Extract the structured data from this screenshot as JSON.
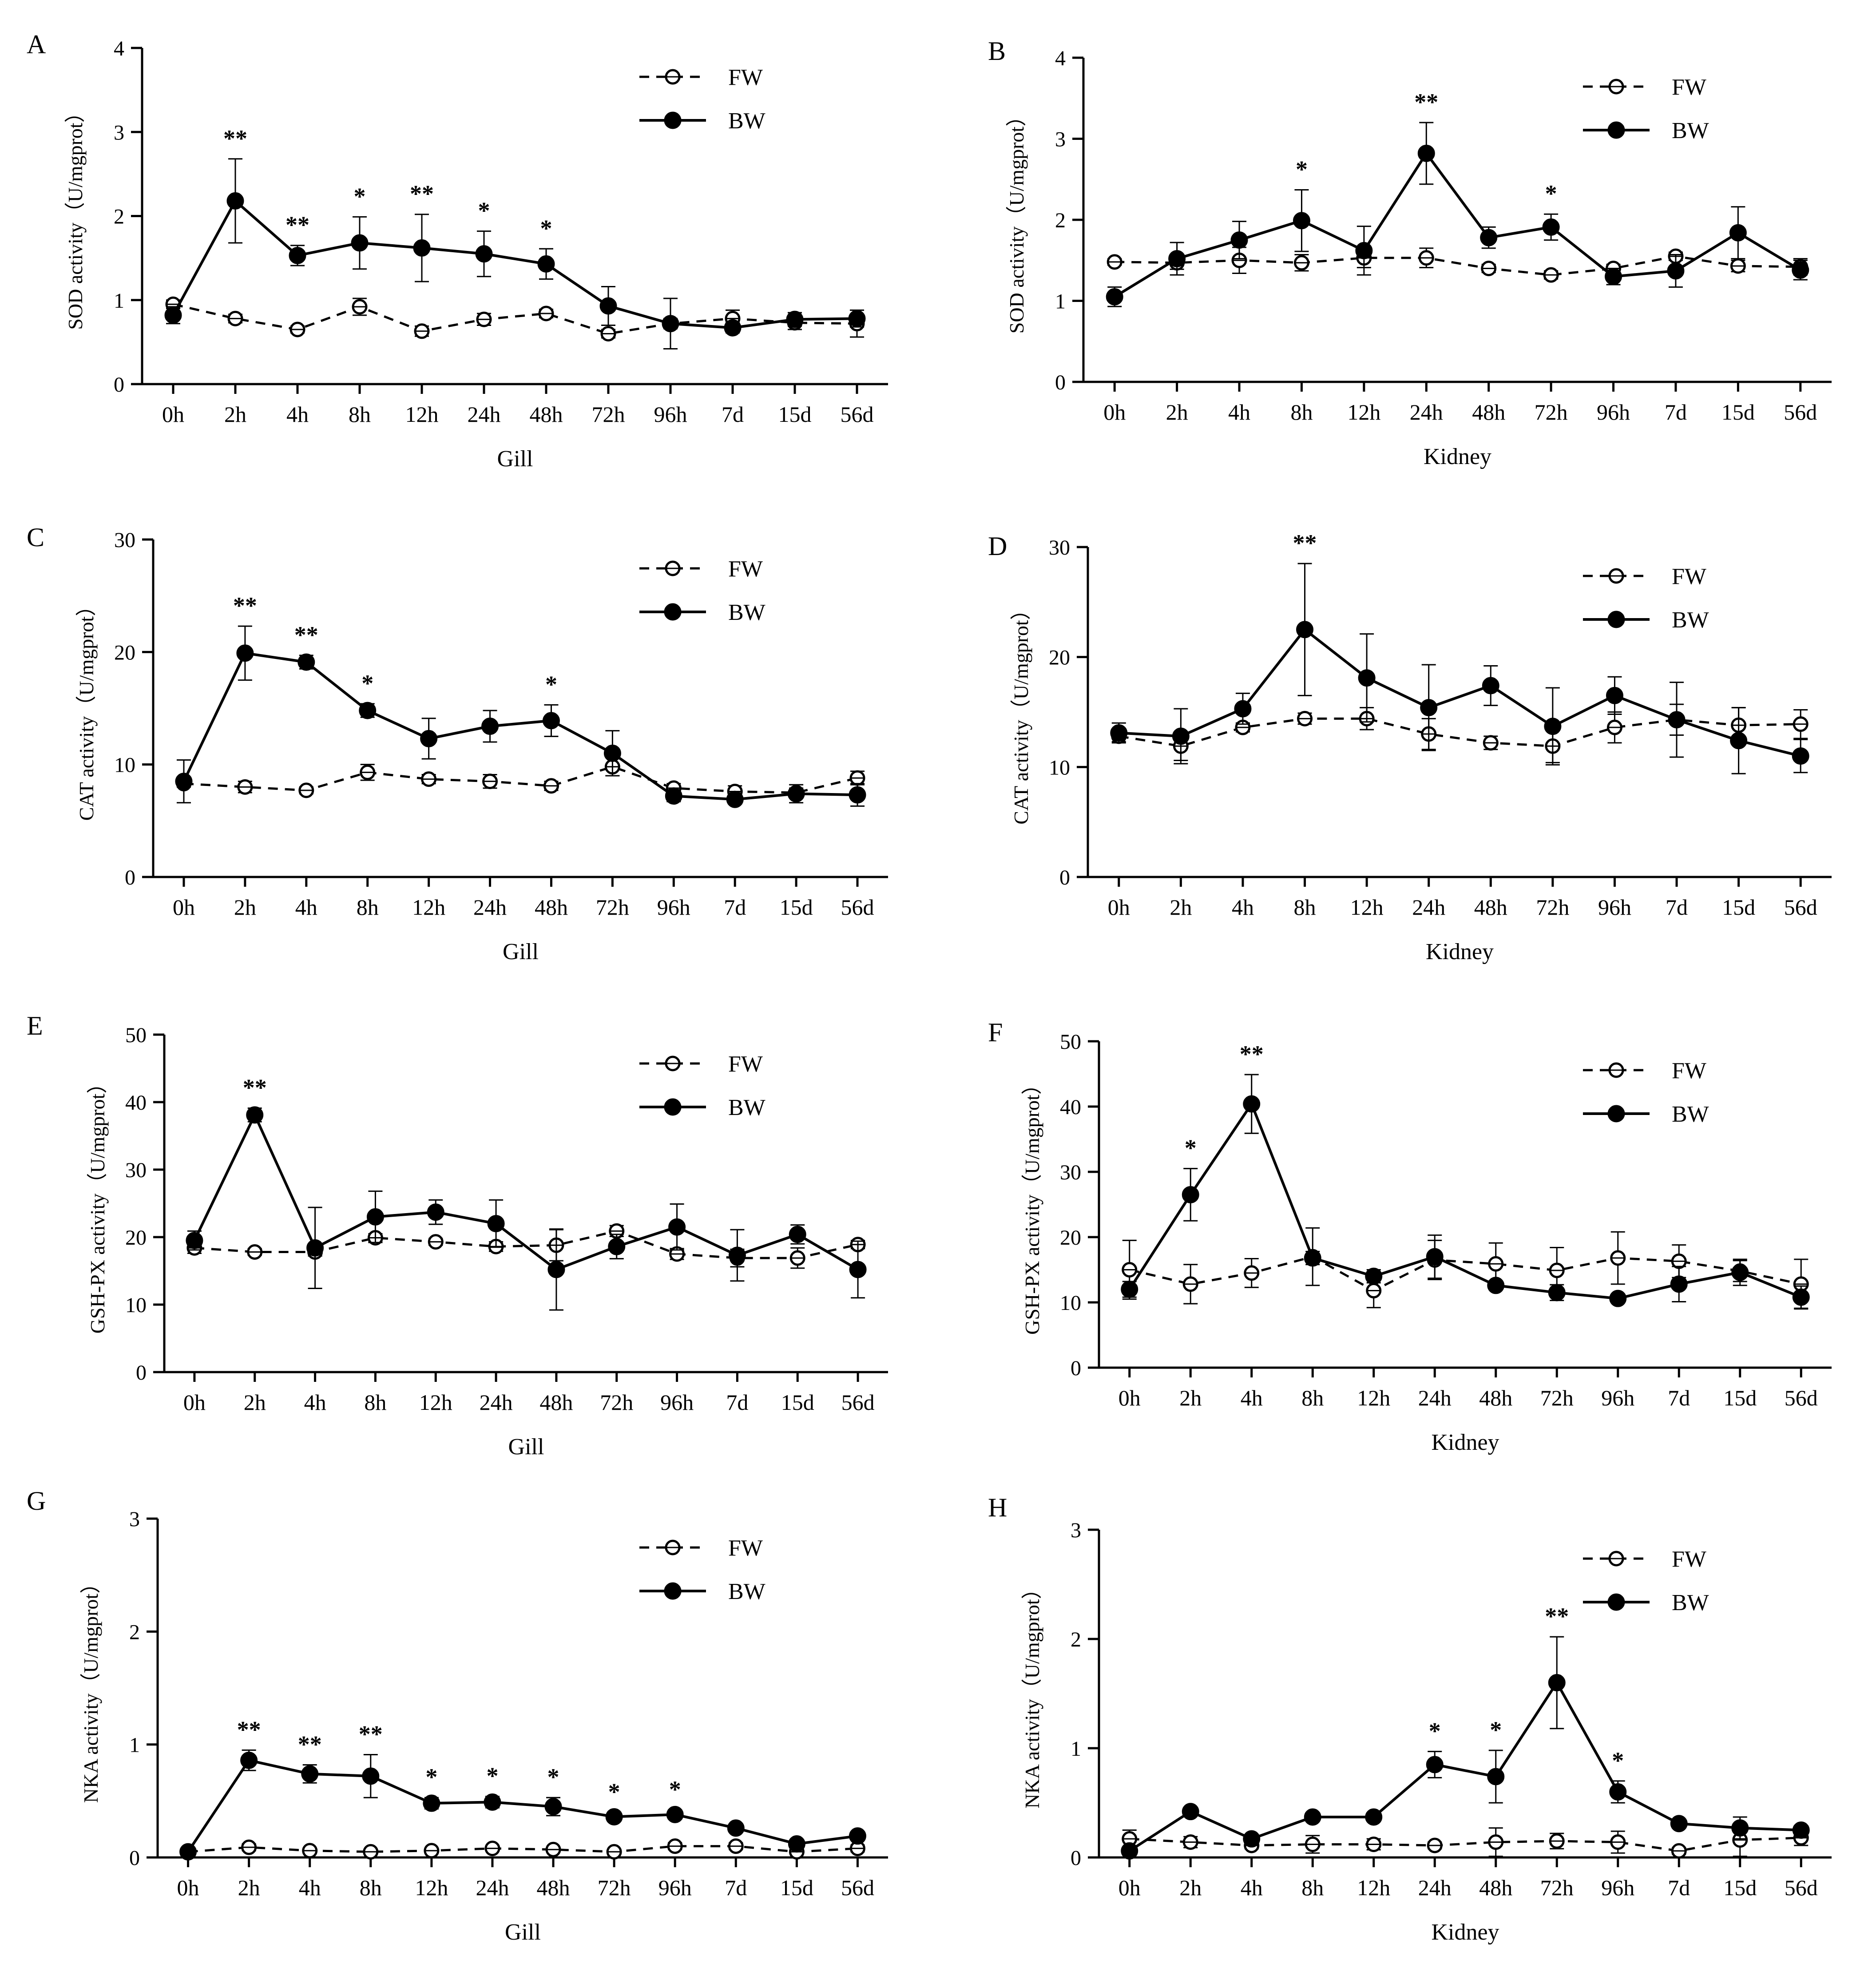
{
  "figure": {
    "categories": [
      "0h",
      "2h",
      "4h",
      "8h",
      "12h",
      "24h",
      "48h",
      "72h",
      "96h",
      "7d",
      "15d",
      "56d"
    ]
  },
  "chart_data": [
    {
      "type": "line",
      "panel_label": "A",
      "title": "",
      "xlabel": "Gill",
      "ylabel": "SOD activity（U/mgprot）",
      "ylim": [
        0,
        4
      ],
      "yticks": [
        0,
        1,
        2,
        3,
        4
      ],
      "legend_position": "top-right",
      "series": [
        {
          "name": "FW",
          "values": [
            0.95,
            0.78,
            0.65,
            0.92,
            0.63,
            0.77,
            0.84,
            0.6,
            0.72,
            0.78,
            0.73,
            0.72
          ],
          "errors": [
            0.05,
            0.05,
            0.04,
            0.1,
            0.06,
            0.07,
            0.05,
            0.05,
            0.06,
            0.1,
            0.08,
            0.16
          ]
        },
        {
          "name": "BW",
          "values": [
            0.82,
            2.18,
            1.53,
            1.68,
            1.62,
            1.55,
            1.43,
            0.93,
            0.72,
            0.67,
            0.77,
            0.78
          ],
          "errors": [
            0.1,
            0.5,
            0.12,
            0.31,
            0.4,
            0.27,
            0.18,
            0.23,
            0.3,
            0.06,
            0.08,
            0.1
          ]
        }
      ],
      "annotations": [
        {
          "category": "2h",
          "text": "**"
        },
        {
          "category": "4h",
          "text": "**"
        },
        {
          "category": "8h",
          "text": "*"
        },
        {
          "category": "12h",
          "text": "**"
        },
        {
          "category": "24h",
          "text": "*"
        },
        {
          "category": "48h",
          "text": "*"
        }
      ]
    },
    {
      "type": "line",
      "panel_label": "B",
      "title": "",
      "xlabel": "Kidney",
      "ylabel": "SOD activity（U/mgprot）",
      "ylim": [
        0,
        4
      ],
      "yticks": [
        0,
        1,
        2,
        3,
        4
      ],
      "legend_position": "top-right",
      "series": [
        {
          "name": "FW",
          "values": [
            1.48,
            1.47,
            1.5,
            1.47,
            1.53,
            1.53,
            1.4,
            1.32,
            1.4,
            1.55,
            1.43,
            1.42
          ],
          "errors": [
            0.04,
            0.08,
            0.16,
            0.1,
            0.12,
            0.12,
            0.05,
            0.05,
            0.05,
            0.05,
            0.07,
            0.1
          ]
        },
        {
          "name": "BW",
          "values": [
            1.05,
            1.52,
            1.75,
            1.99,
            1.62,
            2.82,
            1.78,
            1.91,
            1.3,
            1.37,
            1.84,
            1.38
          ],
          "errors": [
            0.12,
            0.2,
            0.23,
            0.38,
            0.3,
            0.38,
            0.13,
            0.16,
            0.1,
            0.2,
            0.32,
            0.12
          ]
        }
      ],
      "annotations": [
        {
          "category": "8h",
          "text": "*"
        },
        {
          "category": "24h",
          "text": "**"
        },
        {
          "category": "72h",
          "text": "*"
        }
      ]
    },
    {
      "type": "line",
      "panel_label": "C",
      "title": "",
      "xlabel": "Gill",
      "ylabel": "CAT activity（U/mgprot）",
      "ylim": [
        0,
        30
      ],
      "yticks": [
        0,
        10,
        20,
        30
      ],
      "legend_position": "top-right",
      "series": [
        {
          "name": "FW",
          "values": [
            8.3,
            8.0,
            7.7,
            9.3,
            8.7,
            8.5,
            8.1,
            9.8,
            7.9,
            7.6,
            7.5,
            8.8
          ],
          "errors": [
            0.3,
            0.5,
            0.3,
            0.7,
            0.4,
            0.6,
            0.4,
            0.8,
            0.4,
            0.5,
            0.4,
            0.6
          ]
        },
        {
          "name": "BW",
          "values": [
            8.5,
            19.9,
            19.1,
            14.8,
            12.3,
            13.4,
            13.9,
            11.0,
            7.2,
            6.9,
            7.4,
            7.3
          ],
          "errors": [
            1.9,
            2.4,
            0.6,
            0.6,
            1.8,
            1.4,
            1.4,
            2.0,
            0.5,
            0.4,
            0.8,
            1.0
          ]
        }
      ],
      "annotations": [
        {
          "category": "2h",
          "text": "**"
        },
        {
          "category": "4h",
          "text": "**"
        },
        {
          "category": "8h",
          "text": "*"
        },
        {
          "category": "48h",
          "text": "*"
        }
      ]
    },
    {
      "type": "line",
      "panel_label": "D",
      "title": "",
      "xlabel": "Kidney",
      "ylabel": "CAT activity（U/mgprot）",
      "ylim": [
        0,
        30
      ],
      "yticks": [
        0,
        10,
        20,
        30
      ],
      "legend_position": "top-right",
      "series": [
        {
          "name": "FW",
          "values": [
            12.8,
            11.9,
            13.6,
            14.4,
            14.4,
            13.0,
            12.2,
            11.9,
            13.6,
            14.3,
            13.8,
            13.9
          ],
          "errors": [
            0.5,
            1.3,
            0.4,
            0.5,
            1.0,
            1.4,
            0.6,
            1.5,
            1.4,
            1.4,
            1.6,
            1.3
          ]
        },
        {
          "name": "BW",
          "values": [
            13.1,
            12.8,
            15.3,
            22.5,
            18.1,
            15.4,
            17.4,
            13.7,
            16.5,
            14.3,
            12.4,
            11.0
          ],
          "errors": [
            0.9,
            2.5,
            1.4,
            6.0,
            4.0,
            3.9,
            1.8,
            3.5,
            1.7,
            3.4,
            3.0,
            1.5
          ]
        }
      ],
      "annotations": [
        {
          "category": "8h",
          "text": "**"
        }
      ]
    },
    {
      "type": "line",
      "panel_label": "E",
      "title": "",
      "xlabel": "Gill",
      "ylabel": "GSH-PX activity（U/mgprot）",
      "ylim": [
        0,
        50
      ],
      "yticks": [
        0,
        10,
        20,
        30,
        40,
        50
      ],
      "legend_position": "top-right",
      "series": [
        {
          "name": "FW",
          "values": [
            18.4,
            17.8,
            17.8,
            19.9,
            19.3,
            18.6,
            18.8,
            20.9,
            17.5,
            16.9,
            16.9,
            18.9
          ],
          "errors": [
            0.8,
            0.5,
            0.6,
            0.6,
            0.5,
            0.7,
            2.3,
            0.8,
            0.8,
            1.3,
            1.5,
            0.6
          ]
        },
        {
          "name": "BW",
          "values": [
            19.5,
            38.1,
            18.4,
            23.0,
            23.7,
            22.0,
            15.2,
            18.6,
            21.5,
            17.3,
            20.4,
            15.2
          ],
          "errors": [
            1.4,
            1.0,
            6.0,
            3.8,
            1.8,
            3.5,
            6.0,
            1.8,
            3.4,
            3.8,
            1.4,
            4.2
          ]
        }
      ],
      "annotations": [
        {
          "category": "2h",
          "text": "**"
        }
      ]
    },
    {
      "type": "line",
      "panel_label": "F",
      "title": "",
      "xlabel": "Kidney",
      "ylabel": "GSH-PX activity（U/mgprot）",
      "ylim": [
        0,
        50
      ],
      "yticks": [
        0,
        10,
        20,
        30,
        40,
        50
      ],
      "legend_position": "top-right",
      "series": [
        {
          "name": "FW",
          "values": [
            15.0,
            12.8,
            14.5,
            17.0,
            11.8,
            16.5,
            15.9,
            14.9,
            16.8,
            16.3,
            14.8,
            12.8
          ],
          "errors": [
            4.5,
            3.0,
            2.2,
            4.4,
            2.6,
            3.0,
            3.2,
            3.5,
            4.0,
            2.5,
            1.6,
            3.8
          ]
        },
        {
          "name": "BW",
          "values": [
            12.0,
            26.5,
            40.4,
            16.8,
            14.0,
            17.0,
            12.6,
            11.5,
            10.6,
            12.8,
            14.6,
            10.8
          ],
          "errors": [
            1.2,
            4.0,
            4.5,
            1.0,
            1.0,
            3.3,
            0.5,
            1.2,
            0.5,
            2.7,
            2.0,
            1.7
          ]
        }
      ],
      "annotations": [
        {
          "category": "2h",
          "text": "*"
        },
        {
          "category": "4h",
          "text": "**"
        }
      ]
    },
    {
      "type": "line",
      "panel_label": "G",
      "title": "",
      "xlabel": "Gill",
      "ylabel": "NKA activity（U/mgprot）",
      "ylim": [
        0,
        3
      ],
      "yticks": [
        0,
        1,
        2,
        3
      ],
      "legend_position": "top-right",
      "series": [
        {
          "name": "FW",
          "values": [
            0.05,
            0.09,
            0.06,
            0.05,
            0.06,
            0.08,
            0.07,
            0.05,
            0.1,
            0.1,
            0.05,
            0.08
          ],
          "errors": [
            0.02,
            0.03,
            0.02,
            0.02,
            0.02,
            0.02,
            0.02,
            0.02,
            0.03,
            0.03,
            0.02,
            0.03
          ]
        },
        {
          "name": "BW",
          "values": [
            0.05,
            0.86,
            0.74,
            0.72,
            0.48,
            0.49,
            0.45,
            0.36,
            0.38,
            0.26,
            0.12,
            0.19
          ],
          "errors": [
            0.02,
            0.09,
            0.08,
            0.19,
            0.05,
            0.05,
            0.08,
            0.04,
            0.04,
            0.02,
            0.03,
            0.03
          ]
        }
      ],
      "annotations": [
        {
          "category": "2h",
          "text": "**"
        },
        {
          "category": "4h",
          "text": "**"
        },
        {
          "category": "8h",
          "text": "**"
        },
        {
          "category": "12h",
          "text": "*"
        },
        {
          "category": "24h",
          "text": "*"
        },
        {
          "category": "48h",
          "text": "*"
        },
        {
          "category": "72h",
          "text": "*"
        },
        {
          "category": "96h",
          "text": "*"
        }
      ]
    },
    {
      "type": "line",
      "panel_label": "H",
      "title": "",
      "xlabel": "Kidney",
      "ylabel": "NKA activity（U/mgprot）",
      "ylim": [
        0,
        3
      ],
      "yticks": [
        0,
        1,
        2,
        3
      ],
      "legend_position": "top-right",
      "series": [
        {
          "name": "FW",
          "values": [
            0.17,
            0.14,
            0.11,
            0.12,
            0.12,
            0.11,
            0.14,
            0.15,
            0.14,
            0.06,
            0.16,
            0.18
          ],
          "errors": [
            0.08,
            0.05,
            0.03,
            0.08,
            0.05,
            0.03,
            0.13,
            0.07,
            0.1,
            0.03,
            0.15,
            0.07
          ]
        },
        {
          "name": "BW",
          "values": [
            0.06,
            0.42,
            0.17,
            0.37,
            0.37,
            0.85,
            0.74,
            1.6,
            0.6,
            0.31,
            0.27,
            0.25
          ],
          "errors": [
            0.03,
            0.03,
            0.02,
            0.04,
            0.03,
            0.12,
            0.24,
            0.42,
            0.1,
            0.03,
            0.1,
            0.04
          ]
        }
      ],
      "annotations": [
        {
          "category": "24h",
          "text": "*"
        },
        {
          "category": "48h",
          "text": "*"
        },
        {
          "category": "72h",
          "text": "**"
        },
        {
          "category": "96h",
          "text": "*"
        }
      ]
    }
  ]
}
